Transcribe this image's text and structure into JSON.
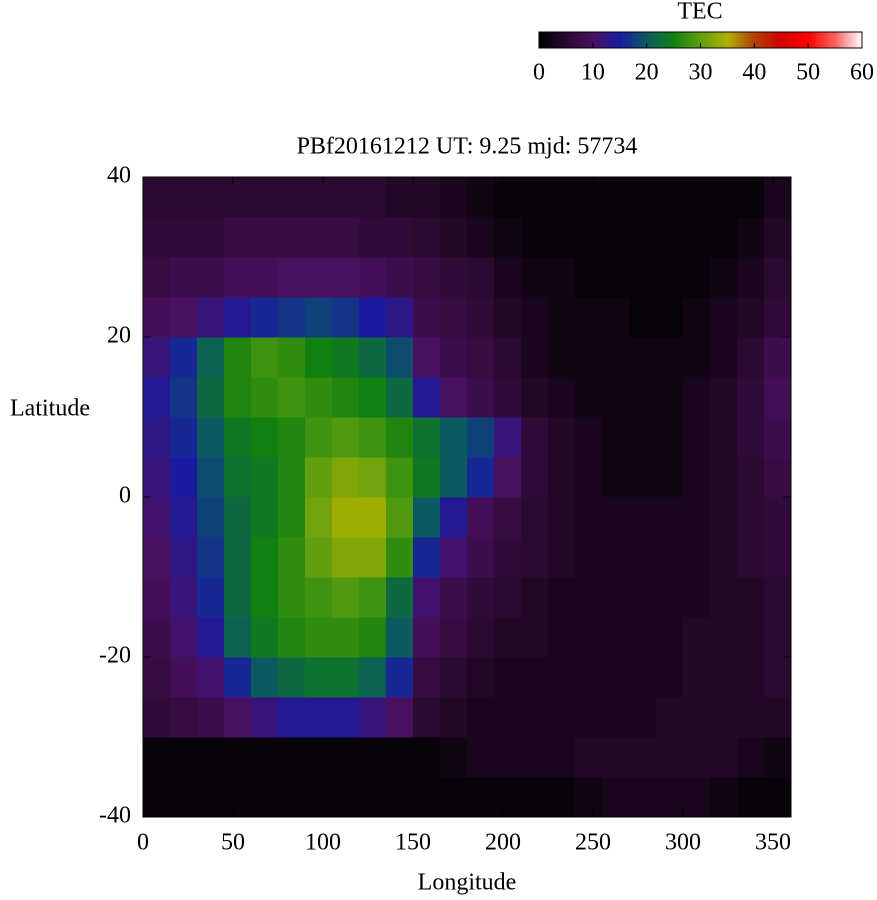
{
  "chart_data": {
    "type": "heatmap",
    "title": "PBf20161212  UT: 9.25  mjd: 57734",
    "xlabel": "Longitude",
    "ylabel": "Latitude",
    "x": [
      7.5,
      22.5,
      37.5,
      52.5,
      67.5,
      82.5,
      97.5,
      112.5,
      127.5,
      142.5,
      157.5,
      172.5,
      187.5,
      202.5,
      217.5,
      232.5,
      247.5,
      262.5,
      277.5,
      292.5,
      307.5,
      322.5,
      337.5,
      352.5
    ],
    "y": [
      -37.5,
      -32.5,
      -27.5,
      -22.5,
      -17.5,
      -12.5,
      -7.5,
      -2.5,
      2.5,
      7.5,
      12.5,
      17.5,
      22.5,
      27.5,
      32.5,
      37.5
    ],
    "values": [
      [
        1,
        1,
        1,
        1,
        1,
        1,
        1,
        1,
        1,
        1,
        1,
        1,
        1,
        1,
        1,
        1,
        2,
        3,
        3,
        3,
        3,
        2,
        1,
        1
      ],
      [
        1,
        1,
        1,
        1,
        1,
        1,
        1,
        1,
        1,
        1,
        1,
        2,
        3,
        3,
        3,
        3,
        4,
        4,
        4,
        4,
        4,
        4,
        3,
        2
      ],
      [
        6,
        7,
        8,
        10,
        12,
        14,
        14,
        14,
        12,
        10,
        5,
        4,
        3,
        3,
        3,
        3,
        3,
        3,
        3,
        4,
        4,
        4,
        4,
        4
      ],
      [
        7,
        9,
        11,
        16,
        20,
        22,
        23,
        23,
        21,
        16,
        7,
        5,
        4,
        3,
        3,
        3,
        3,
        3,
        3,
        3,
        4,
        4,
        4,
        5
      ],
      [
        8,
        11,
        14,
        21,
        24,
        26,
        27,
        27,
        26,
        20,
        9,
        7,
        5,
        4,
        4,
        3,
        3,
        3,
        3,
        3,
        4,
        4,
        4,
        5
      ],
      [
        9,
        12,
        16,
        22,
        25,
        27,
        28,
        29,
        28,
        22,
        11,
        8,
        6,
        5,
        4,
        3,
        3,
        3,
        3,
        3,
        3,
        4,
        4,
        5
      ],
      [
        10,
        13,
        17,
        22,
        25,
        27,
        30,
        32,
        32,
        27,
        16,
        11,
        8,
        6,
        5,
        4,
        3,
        3,
        3,
        3,
        3,
        4,
        5,
        6
      ],
      [
        11,
        14,
        18,
        22,
        24,
        26,
        31,
        34,
        34,
        29,
        20,
        14,
        9,
        7,
        5,
        4,
        3,
        3,
        3,
        3,
        3,
        4,
        5,
        6
      ],
      [
        12,
        15,
        19,
        23,
        24,
        26,
        30,
        32,
        31,
        28,
        24,
        20,
        16,
        10,
        6,
        4,
        3,
        2,
        2,
        2,
        3,
        4,
        5,
        7
      ],
      [
        13,
        16,
        20,
        24,
        25,
        26,
        28,
        29,
        28,
        26,
        23,
        20,
        18,
        12,
        6,
        4,
        3,
        2,
        2,
        2,
        3,
        4,
        6,
        8
      ],
      [
        14,
        17,
        22,
        26,
        27,
        28,
        27,
        26,
        25,
        22,
        14,
        10,
        8,
        6,
        4,
        3,
        2,
        2,
        2,
        2,
        3,
        4,
        6,
        9
      ],
      [
        12,
        16,
        21,
        26,
        28,
        27,
        25,
        24,
        22,
        19,
        10,
        8,
        7,
        5,
        3,
        2,
        2,
        2,
        2,
        2,
        2,
        3,
        5,
        8
      ],
      [
        9,
        10,
        12,
        14,
        16,
        17,
        18,
        17,
        15,
        13,
        8,
        7,
        6,
        4,
        3,
        2,
        2,
        2,
        1,
        1,
        2,
        3,
        4,
        6
      ],
      [
        7,
        8,
        8,
        9,
        9,
        10,
        10,
        10,
        9,
        8,
        7,
        6,
        5,
        3,
        2,
        2,
        1,
        1,
        1,
        1,
        1,
        2,
        3,
        5
      ],
      [
        6,
        6,
        6,
        7,
        7,
        7,
        7,
        7,
        6,
        6,
        5,
        4,
        3,
        2,
        1,
        1,
        1,
        1,
        1,
        1,
        1,
        1,
        2,
        4
      ],
      [
        5,
        5,
        5,
        5,
        5,
        5,
        5,
        5,
        5,
        4,
        4,
        3,
        2,
        1,
        1,
        1,
        1,
        1,
        1,
        1,
        1,
        1,
        1,
        3
      ]
    ],
    "xlim": [
      0,
      360
    ],
    "ylim": [
      -40,
      40
    ],
    "xticks": [
      0,
      50,
      100,
      150,
      200,
      250,
      300,
      350
    ],
    "yticks": [
      -40,
      -20,
      0,
      20,
      40
    ],
    "colorbar": {
      "title": "TEC",
      "zlim": [
        0,
        60
      ],
      "ticks": [
        0,
        10,
        20,
        30,
        40,
        50,
        60
      ],
      "colors": [
        "#000000",
        "#2a0a30",
        "#4a1060",
        "#1a1aa0",
        "#0a5a60",
        "#108010",
        "#60a010",
        "#b0b000",
        "#b04000",
        "#d00000",
        "#ff0000",
        "#ff6060",
        "#ffffff"
      ]
    }
  }
}
